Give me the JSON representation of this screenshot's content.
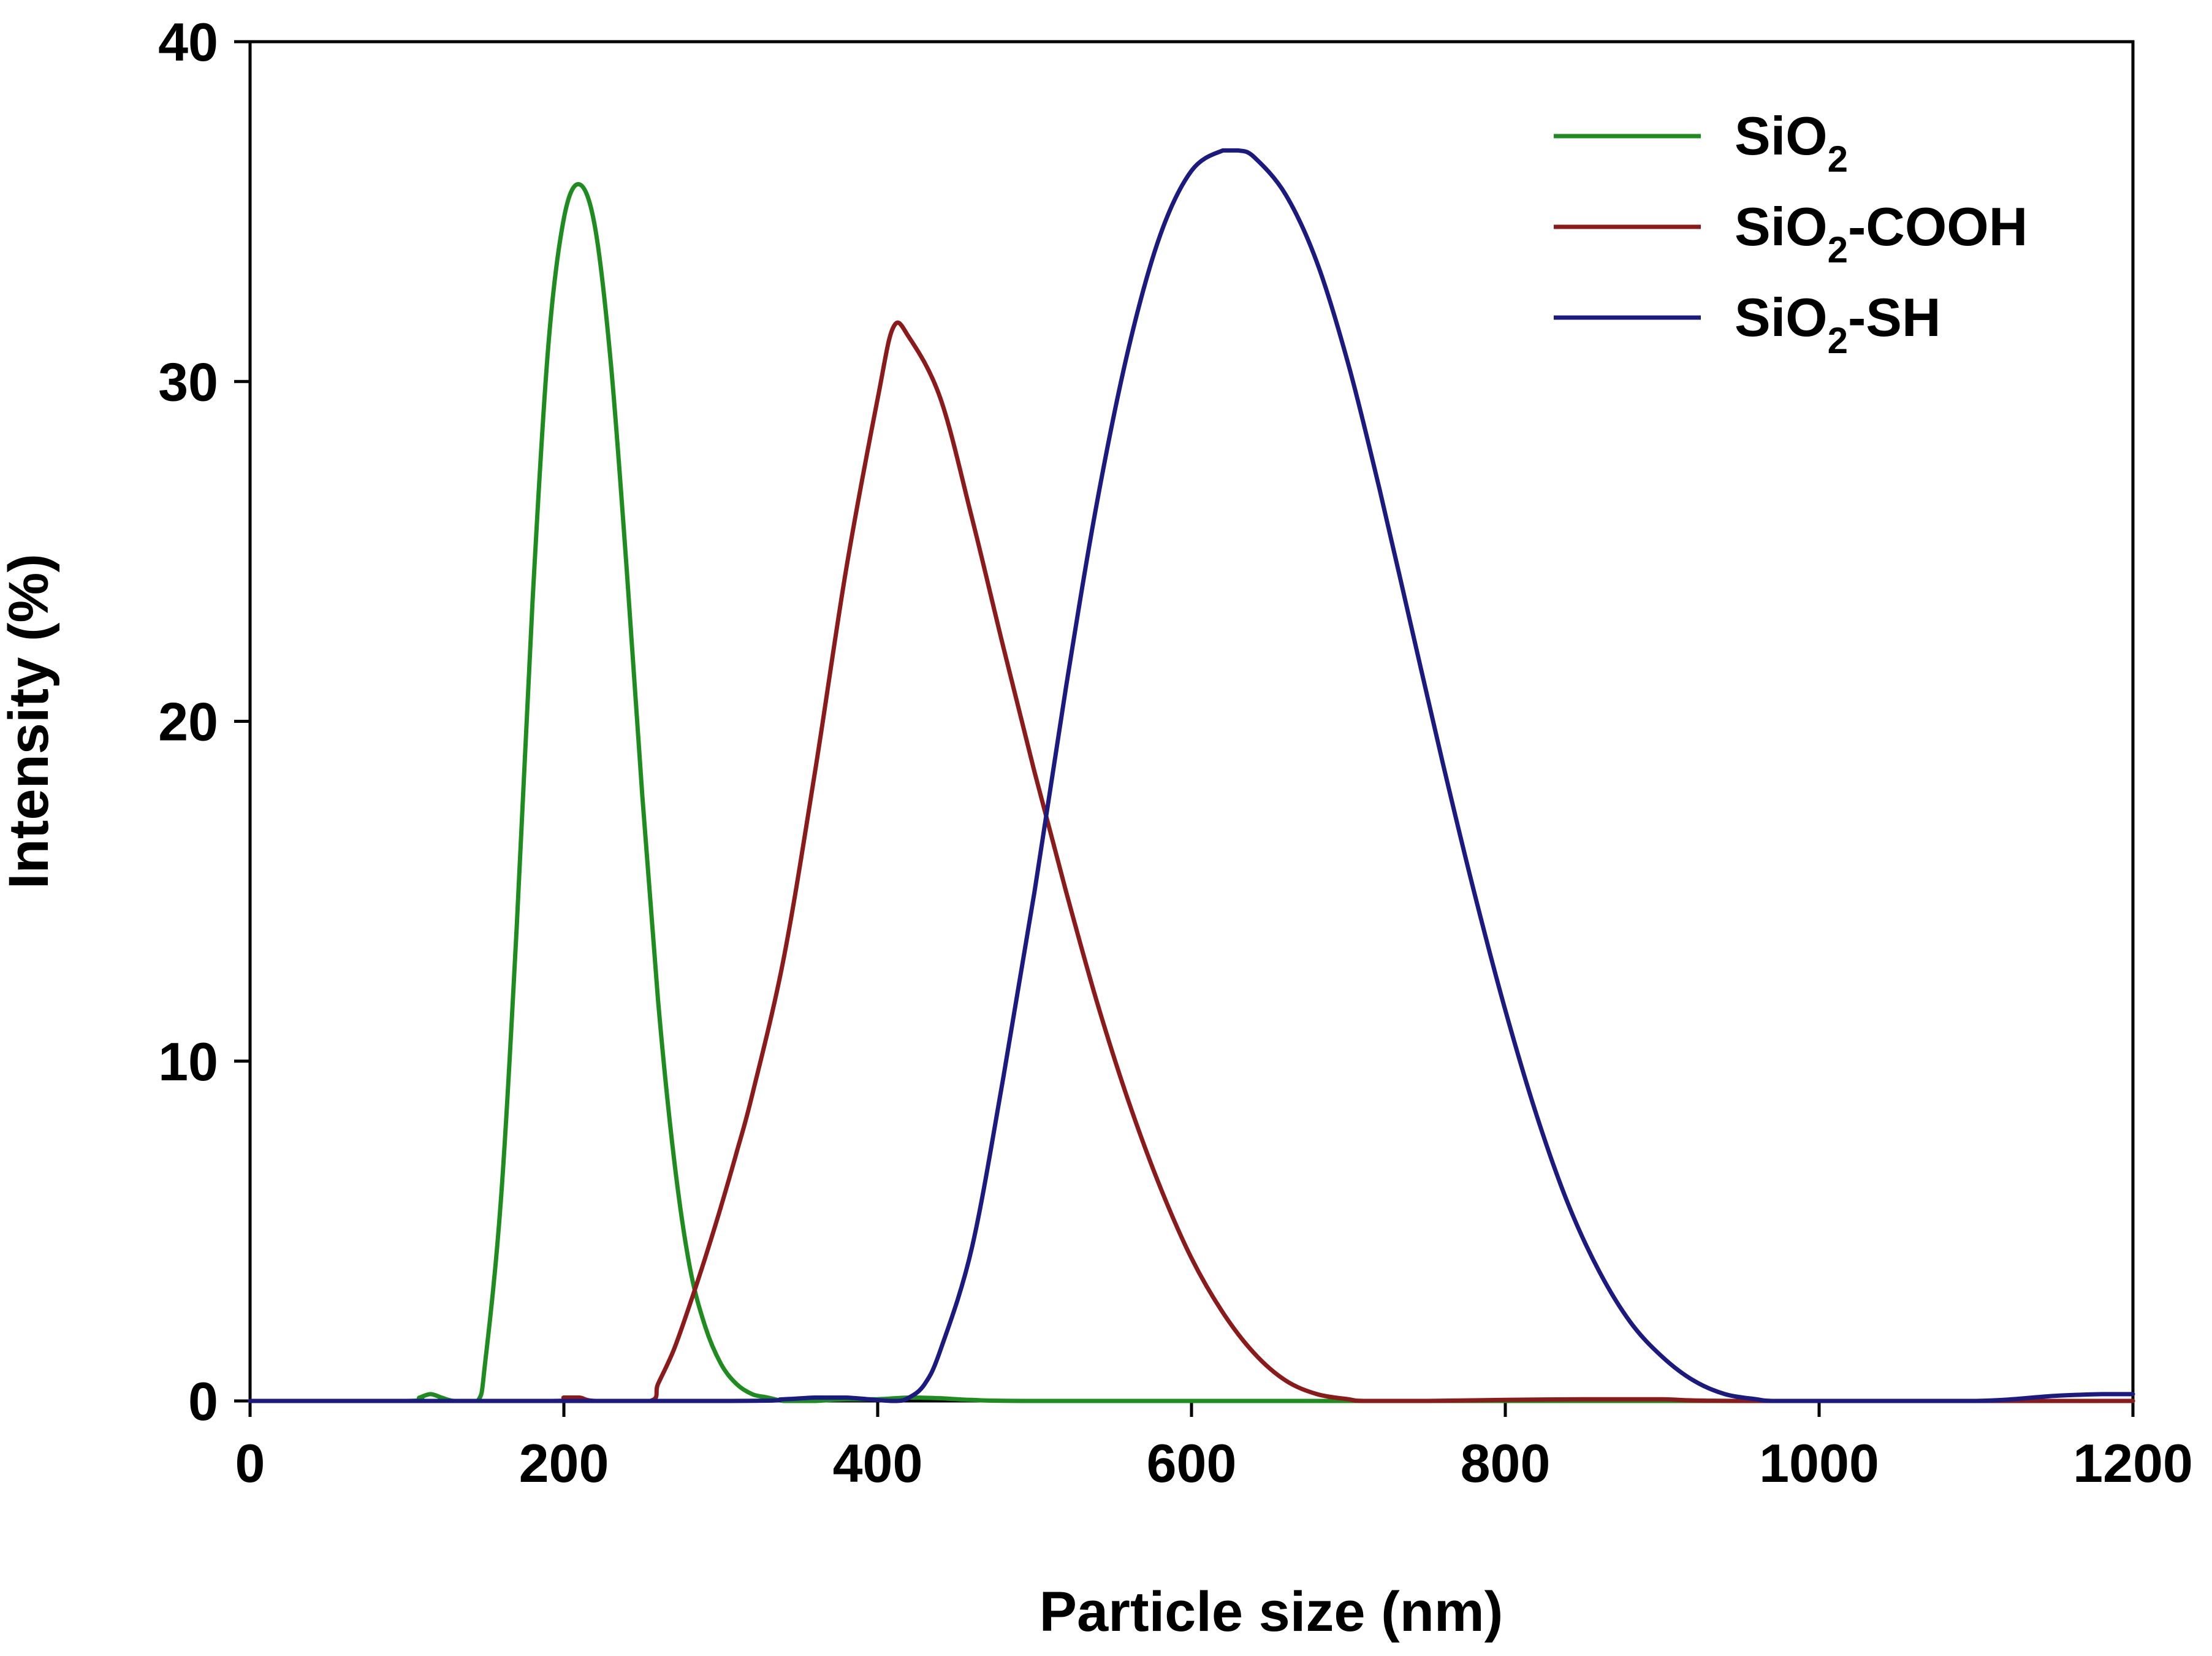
{
  "chart_data": {
    "type": "line",
    "xlabel": "Particle size (nm)",
    "ylabel": "Intensity (%)",
    "xlim": [
      0,
      1200
    ],
    "ylim": [
      0,
      40
    ],
    "xticks": [
      0,
      200,
      400,
      600,
      800,
      1000,
      1200
    ],
    "yticks": [
      0,
      10,
      20,
      30,
      40
    ],
    "grid": false,
    "legend_position": "top-right",
    "series": [
      {
        "name": "SiO2",
        "name_main": "SiO",
        "name_sub": "2",
        "name_rest": "",
        "color": "#1f8c1f",
        "x": [
          0,
          100,
          108,
          115,
          122,
          130,
          145,
          150,
          160,
          170,
          180,
          190,
          200,
          210,
          220,
          230,
          240,
          250,
          260,
          270,
          280,
          290,
          300,
          310,
          320,
          330,
          340,
          350,
          360,
          380,
          400,
          420,
          440,
          460,
          500,
          700,
          780,
          1200
        ],
        "y": [
          0,
          0,
          0.1,
          0.2,
          0.1,
          0,
          0,
          1.2,
          6,
          14,
          23.5,
          31,
          34.8,
          35.8,
          34.5,
          30.5,
          24.5,
          17.8,
          11.8,
          7.2,
          4,
          2.2,
          1.1,
          0.5,
          0.2,
          0.1,
          0,
          0,
          0,
          0.05,
          0.05,
          0.1,
          0.08,
          0.03,
          0,
          0,
          0,
          0
        ]
      },
      {
        "name": "SiO2-COOH",
        "name_main": "SiO",
        "name_sub": "2",
        "name_rest": "-COOH",
        "color": "#8b1a1a",
        "x": [
          0,
          190,
          200,
          210,
          220,
          255,
          260,
          270,
          280,
          290,
          300,
          310,
          320,
          340,
          360,
          380,
          400,
          410,
          420,
          440,
          460,
          480,
          500,
          520,
          540,
          560,
          580,
          600,
          620,
          640,
          660,
          680,
          700,
          710,
          750,
          800,
          850,
          900,
          950,
          1200
        ],
        "y": [
          0,
          0,
          0.1,
          0.1,
          0,
          0,
          0.5,
          1.5,
          2.8,
          4.2,
          5.7,
          7.3,
          9,
          13,
          18.5,
          24.5,
          29.5,
          31.6,
          31.3,
          29.5,
          26,
          22.2,
          18.5,
          15,
          11.7,
          8.8,
          6.3,
          4.2,
          2.6,
          1.4,
          0.6,
          0.2,
          0.05,
          0,
          0,
          0.03,
          0.05,
          0.05,
          0,
          0
        ]
      },
      {
        "name": "SiO2-SH",
        "name_main": "SiO",
        "name_sub": "2",
        "name_rest": "-SH",
        "color": "#1a1a80",
        "x": [
          0,
          300,
          340,
          360,
          380,
          410,
          420,
          430,
          440,
          460,
          480,
          500,
          520,
          540,
          560,
          580,
          600,
          620,
          630,
          640,
          660,
          680,
          700,
          720,
          740,
          760,
          780,
          800,
          820,
          840,
          860,
          880,
          900,
          920,
          940,
          960,
          970,
          1000,
          1100,
          1150,
          1180,
          1200
        ],
        "y": [
          0,
          0,
          0.05,
          0.1,
          0.1,
          0,
          0.1,
          0.5,
          1.5,
          4.5,
          9.5,
          15,
          21,
          26.5,
          31,
          34.3,
          36.2,
          36.8,
          36.8,
          36.6,
          35.5,
          33.5,
          30.5,
          26.8,
          22.8,
          18.8,
          15,
          11.5,
          8.4,
          5.8,
          3.8,
          2.3,
          1.3,
          0.6,
          0.2,
          0.05,
          0,
          0,
          0,
          0.15,
          0.2,
          0.2
        ]
      }
    ]
  }
}
